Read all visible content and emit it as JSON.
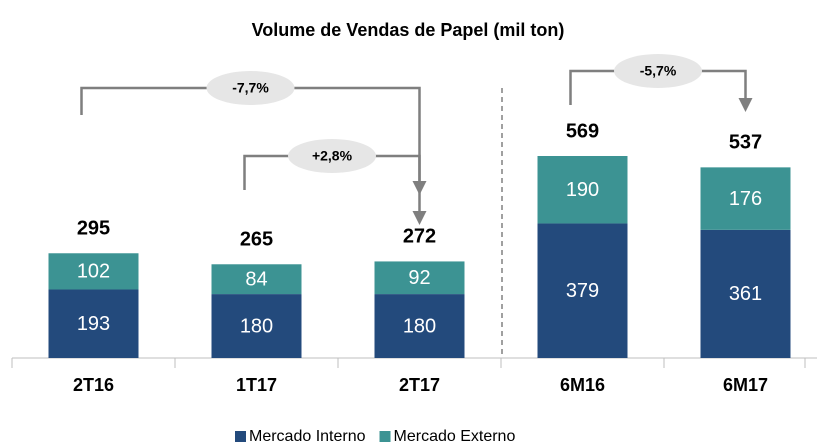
{
  "chart_data": {
    "type": "stacked_bar",
    "title": "Volume de Vendas de Papel (mil ton)",
    "categories": [
      "2T16",
      "1T17",
      "2T17",
      "6M16",
      "6M17"
    ],
    "series": [
      {
        "name": "Mercado Interno",
        "color": "#234a7c",
        "values": [
          193,
          180,
          180,
          379,
          361
        ]
      },
      {
        "name": "Mercado Externo",
        "color": "#3c9393",
        "values": [
          102,
          84,
          92,
          190,
          176
        ]
      }
    ],
    "totals": [
      295,
      265,
      272,
      569,
      537
    ],
    "annotations": [
      {
        "from": "2T16",
        "to": "2T17",
        "label": "-7,7%"
      },
      {
        "from": "1T17",
        "to": "2T17",
        "label": "+2,8%"
      },
      {
        "from": "6M16",
        "to": "6M17",
        "label": "-5,7%"
      }
    ],
    "legend": "bottom"
  }
}
